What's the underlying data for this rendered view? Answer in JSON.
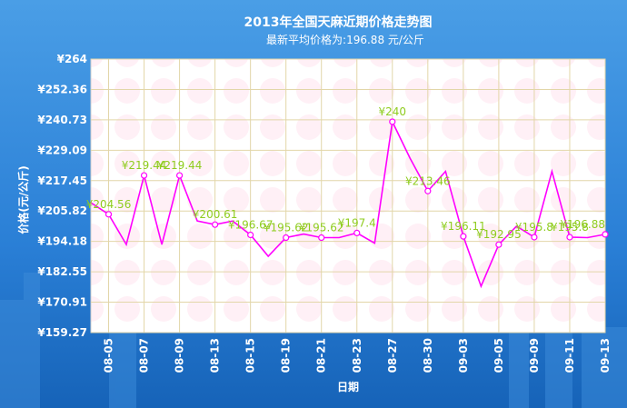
{
  "chart_data": {
    "type": "line",
    "title": "2013年全国天麻近期价格走势图",
    "subtitle": "最新平均价格为:196.88 元/公斤",
    "xlabel": "日期",
    "ylabel": "价格(元/公斤)",
    "ylim": [
      159.27,
      264
    ],
    "yticks": [
      "¥159.27",
      "¥170.91",
      "¥182.55",
      "¥194.18",
      "¥205.82",
      "¥217.45",
      "¥229.09",
      "¥240.73",
      "¥252.36",
      "¥264"
    ],
    "xticks": [
      "08-05",
      "08-07",
      "08-09",
      "08-13",
      "08-15",
      "08-19",
      "08-21",
      "08-23",
      "08-27",
      "08-30",
      "09-03",
      "09-05",
      "09-09",
      "09-11",
      "09-13"
    ],
    "grid": true,
    "legend": "none",
    "series_color": "#ff00ff",
    "label_color": "#8fcc1f",
    "points": [
      {
        "y": 209.0
      },
      {
        "y": 204.56,
        "label": "¥204.56",
        "marker": true
      },
      {
        "y": 193.0
      },
      {
        "y": 219.44,
        "label": "¥219.44",
        "marker": true
      },
      {
        "y": 193.0
      },
      {
        "y": 219.44,
        "label": "¥219.44",
        "marker": true
      },
      {
        "y": 202.0
      },
      {
        "y": 200.61,
        "label": "¥200.61",
        "marker": true
      },
      {
        "y": 202.0
      },
      {
        "y": 196.67,
        "label": "¥196.67",
        "marker": true
      },
      {
        "y": 188.5
      },
      {
        "y": 195.62,
        "label": "¥195.62",
        "marker": true
      },
      {
        "y": 197.0
      },
      {
        "y": 195.62,
        "label": "¥195.62",
        "marker": true
      },
      {
        "y": 195.62
      },
      {
        "y": 197.4,
        "label": "¥197.4",
        "marker": true
      },
      {
        "y": 193.5
      },
      {
        "y": 240.0,
        "label": "¥240",
        "marker": true
      },
      {
        "y": 226.0
      },
      {
        "y": 213.46,
        "label": "¥213.46",
        "marker": true
      },
      {
        "y": 221.0
      },
      {
        "y": 196.11,
        "label": "¥196.11",
        "marker": true
      },
      {
        "y": 177.0
      },
      {
        "y": 192.95,
        "label": "¥192.95",
        "marker": true
      },
      {
        "y": 200.0
      },
      {
        "y": 195.8,
        "label": "¥195.8",
        "marker": true
      },
      {
        "y": 221.0
      },
      {
        "y": 195.8,
        "label": "¥195.8",
        "marker": true
      },
      {
        "y": 195.62
      },
      {
        "y": 196.88,
        "label": "¥196.88",
        "marker": true
      }
    ]
  }
}
